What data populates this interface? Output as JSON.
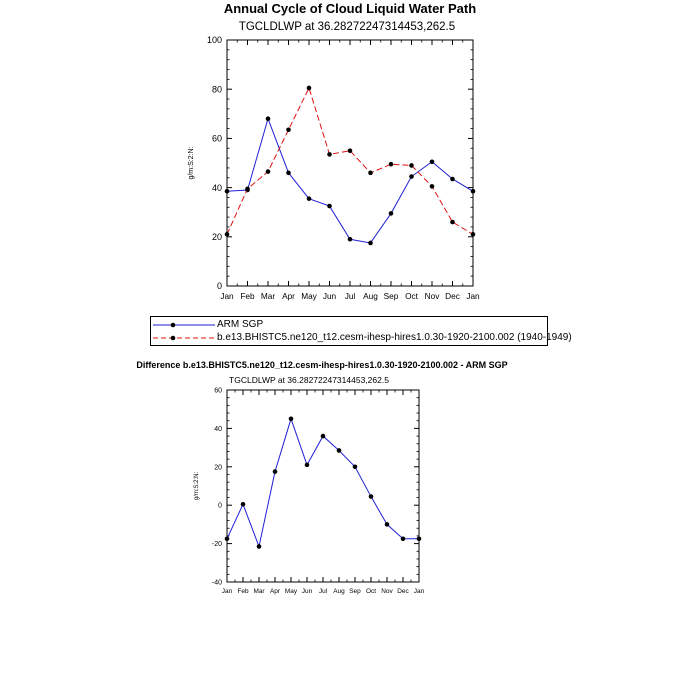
{
  "chart_data": [
    {
      "type": "line",
      "title": "Annual Cycle of Cloud Liquid Water Path",
      "subtitle": "TGCLDLWP at 36.28272247314453,262.5",
      "ylabel": "g/m:S:2:N:",
      "xlabel": "",
      "ylim": [
        0,
        100
      ],
      "yticks": [
        "0",
        "20",
        "40",
        "60",
        "80",
        "100"
      ],
      "categories": [
        "Jan",
        "Feb",
        "Mar",
        "Apr",
        "May",
        "Jun",
        "Jul",
        "Aug",
        "Sep",
        "Oct",
        "Nov",
        "Dec",
        "Jan"
      ],
      "series": [
        {
          "name": "ARM SGP",
          "color": "#1f1fd6",
          "dash": "solid",
          "values": [
            38.5,
            39,
            68,
            46,
            35.5,
            32.5,
            19,
            17.5,
            29.5,
            44.5,
            50.5,
            43.5,
            38.5
          ]
        },
        {
          "name": "b.e13.BHISTC5.ne120_t12.cesm-ihesp-hires1.0.30-1920-2100.002 (1940-1949)",
          "color": "#e01010",
          "dash": "dashed",
          "values": [
            21,
            39.5,
            46.5,
            63.5,
            80.5,
            53.5,
            55,
            46,
            49.5,
            49,
            40.5,
            26,
            21
          ]
        }
      ],
      "legend": {
        "placement": "below"
      }
    },
    {
      "type": "line",
      "title": "Difference b.e13.BHISTC5.ne120_t12.cesm-ihesp-hires1.0.30-1920-2100.002 - ARM SGP",
      "subtitle": "TGCLDLWP at 36.28272247314453,262.5",
      "ylabel": "g/m:S:2:N:",
      "xlabel": "",
      "ylim": [
        -40,
        60
      ],
      "yticks": [
        "-40",
        "-20",
        "0",
        "20",
        "40",
        "60"
      ],
      "categories": [
        "Jan",
        "Feb",
        "Mar",
        "Apr",
        "May",
        "Jun",
        "Jul",
        "Aug",
        "Sep",
        "Oct",
        "Nov",
        "Dec",
        "Jan"
      ],
      "series": [
        {
          "name": "Difference",
          "color": "#1f1fd6",
          "dash": "solid",
          "values": [
            -17.5,
            0.5,
            -21.5,
            17.5,
            45,
            21,
            36,
            28.5,
            20,
            4.5,
            -10,
            -17.5,
            -17.5
          ]
        }
      ]
    }
  ]
}
